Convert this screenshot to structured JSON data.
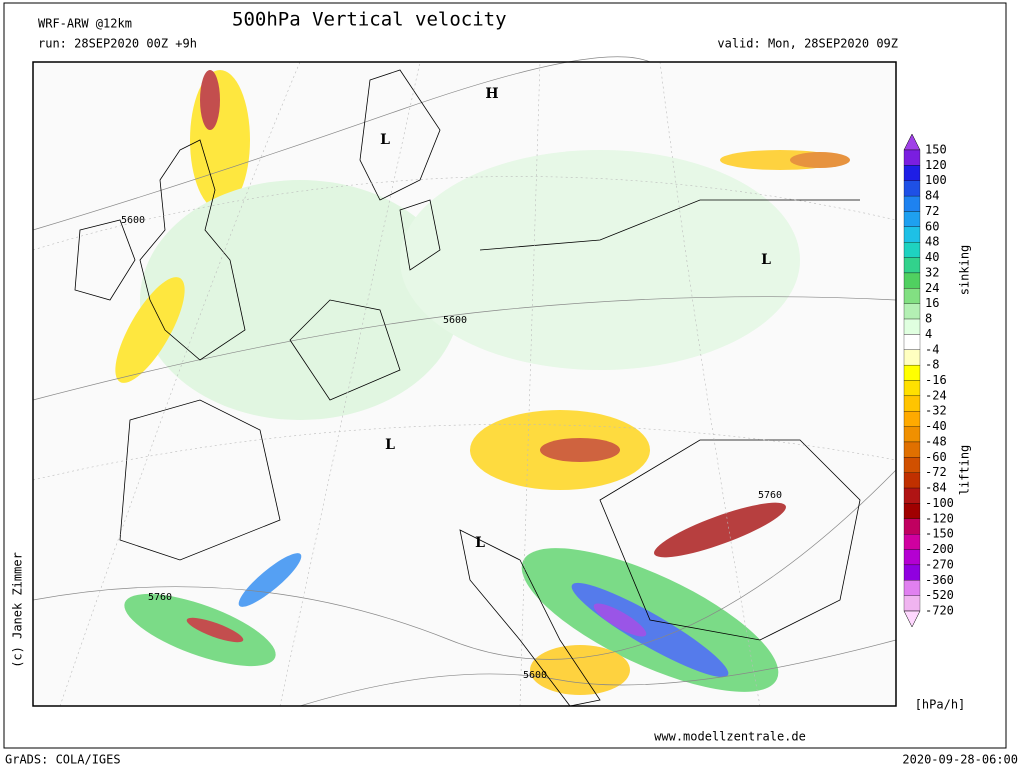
{
  "header": {
    "model": "WRF-ARW @12km",
    "title": "500hPa Vertical velocity",
    "run": "run: 28SEP2020 00Z +9h",
    "valid": "valid: Mon, 28SEP2020 09Z"
  },
  "map_labels": [
    {
      "text": "H"
    },
    {
      "text": "L"
    },
    {
      "text": "L"
    },
    {
      "text": "L"
    },
    {
      "text": "L"
    },
    {
      "text": "5600"
    },
    {
      "text": "5600"
    },
    {
      "text": "5600"
    },
    {
      "text": "5760"
    },
    {
      "text": "5760"
    }
  ],
  "colorbar": {
    "levels": [
      150,
      120,
      100,
      84,
      72,
      60,
      48,
      40,
      32,
      24,
      16,
      8,
      4,
      -4,
      -8,
      -16,
      -24,
      -32,
      -40,
      -48,
      -60,
      -72,
      -84,
      -100,
      -120,
      -150,
      -200,
      -270,
      -360,
      -520,
      -720
    ],
    "colors": [
      "#a040e8",
      "#7a1ee0",
      "#1e1ee6",
      "#1e50e6",
      "#1e82f0",
      "#1ea0f0",
      "#1ec0e6",
      "#1ed2c0",
      "#32d28c",
      "#50d060",
      "#82e082",
      "#b4f0b4",
      "#e0ffe0",
      "#ffffff",
      "#ffffc0",
      "#ffff00",
      "#ffe000",
      "#ffc400",
      "#ffaa00",
      "#f09000",
      "#e07000",
      "#d05000",
      "#c03000",
      "#b01414",
      "#a00000",
      "#c00060",
      "#d000a0",
      "#b400d2",
      "#9000e0",
      "#e080f0",
      "#f0b4f0",
      "#ffd8ff"
    ],
    "upper_label": "sinking",
    "lower_label": "lifting",
    "unit": "[hPa/h]"
  },
  "credit": "(c) Janek Zimmer",
  "website": "www.modellzentrale.de",
  "footer_left": "GrADS: COLA/IGES",
  "footer_right": "2020-09-28-06:00"
}
